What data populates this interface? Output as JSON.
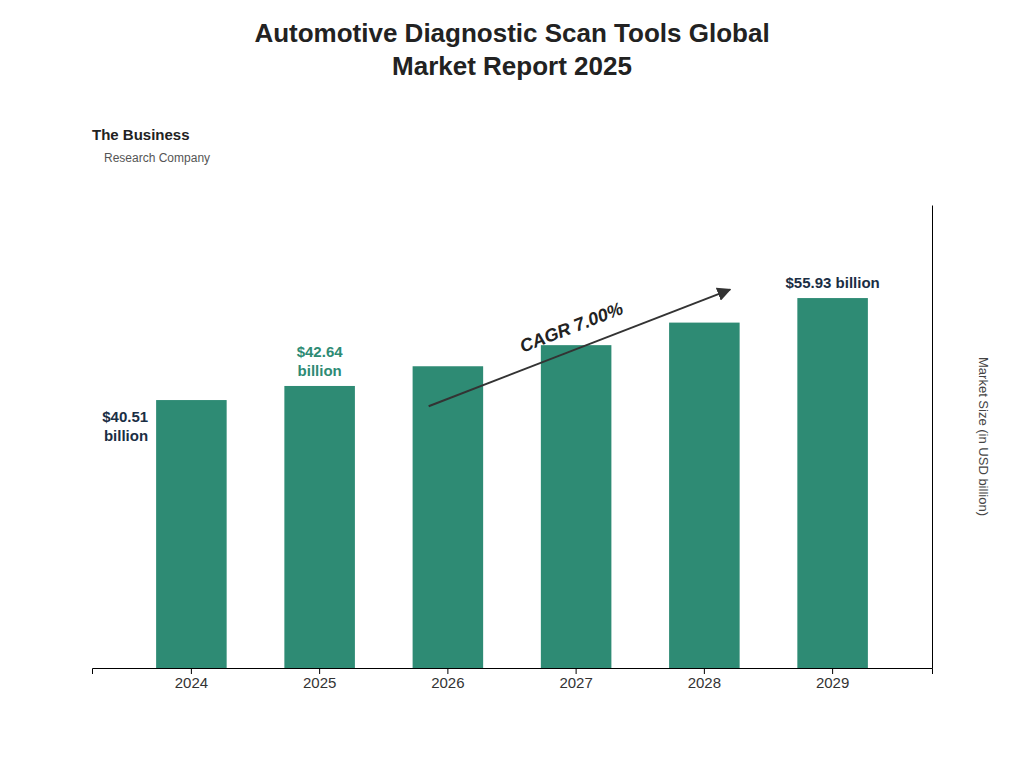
{
  "chart_data": {
    "type": "bar",
    "title": "Automotive Diagnostic Scan Tools Global\nMarket Report 2025",
    "categories": [
      "2024",
      "2025",
      "2026",
      "2027",
      "2028",
      "2029"
    ],
    "values": [
      40.51,
      42.64,
      45.62,
      48.81,
      52.22,
      55.93
    ],
    "color": "#2e8b74",
    "ylabel": "Market Size (in USD billion)",
    "ylim": [
      0,
      70
    ],
    "yticks": [],
    "tick_labels": "x",
    "grid": false,
    "bar_labels": [
      {
        "category": "2024",
        "text": "$40.51\nbillion",
        "color": "#1a2e44"
      },
      {
        "category": "2025",
        "text": "$42.64\nbillion",
        "color": "#2e8b74"
      },
      {
        "category": "2029",
        "text": "$55.93 billion",
        "color": "#1a2e44"
      }
    ],
    "trend": {
      "text": "CAGR 7.00%",
      "from": "2026",
      "to": "2028"
    },
    "logo_text": [
      "The Business",
      "Research Company"
    ]
  }
}
